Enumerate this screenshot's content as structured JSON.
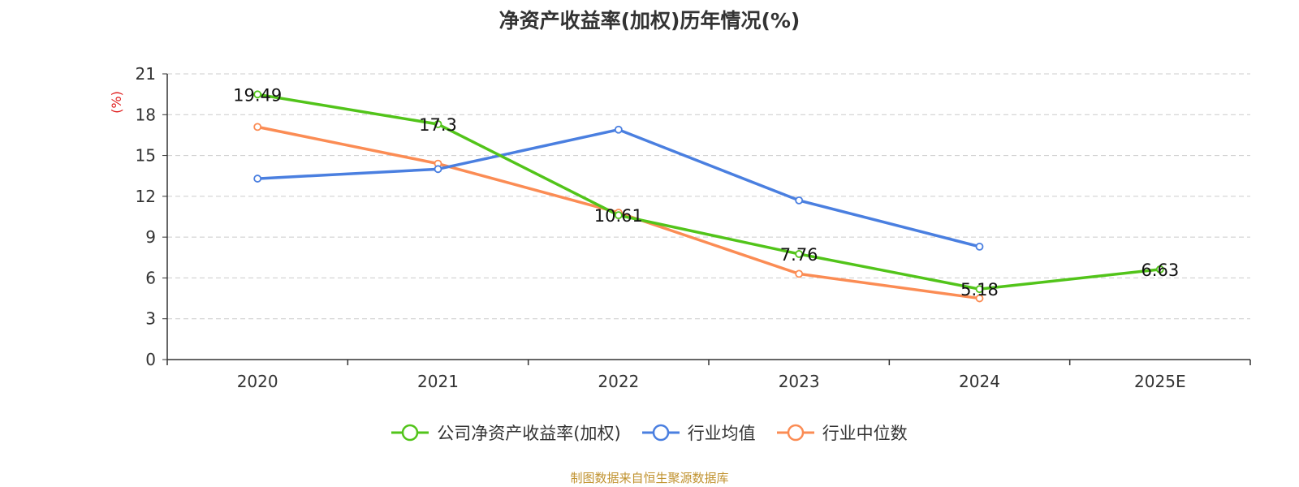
{
  "chart_data": {
    "type": "line",
    "title": "净资产收益率(加权)历年情况(%)",
    "ylabel": "(%)",
    "xlabel": "",
    "categories": [
      "2020",
      "2021",
      "2022",
      "2023",
      "2024",
      "2025E"
    ],
    "ylim": [
      0,
      21
    ],
    "yticks": [
      0,
      3,
      6,
      9,
      12,
      15,
      18,
      21
    ],
    "grid": true,
    "legend_position": "bottom",
    "series": [
      {
        "name": "公司净资产收益率(加权)",
        "color": "#52c41a",
        "values": [
          19.49,
          17.3,
          10.61,
          7.76,
          5.18,
          6.63
        ],
        "show_labels": true
      },
      {
        "name": "行业均值",
        "color": "#4a7fe0",
        "values": [
          13.3,
          14.0,
          16.9,
          11.7,
          8.3,
          null
        ],
        "show_labels": false
      },
      {
        "name": "行业中位数",
        "color": "#fb8c54",
        "values": [
          17.1,
          14.4,
          10.8,
          6.3,
          4.5,
          null
        ],
        "show_labels": false
      }
    ]
  },
  "footer": {
    "source": "制图数据来自恒生聚源数据库"
  }
}
